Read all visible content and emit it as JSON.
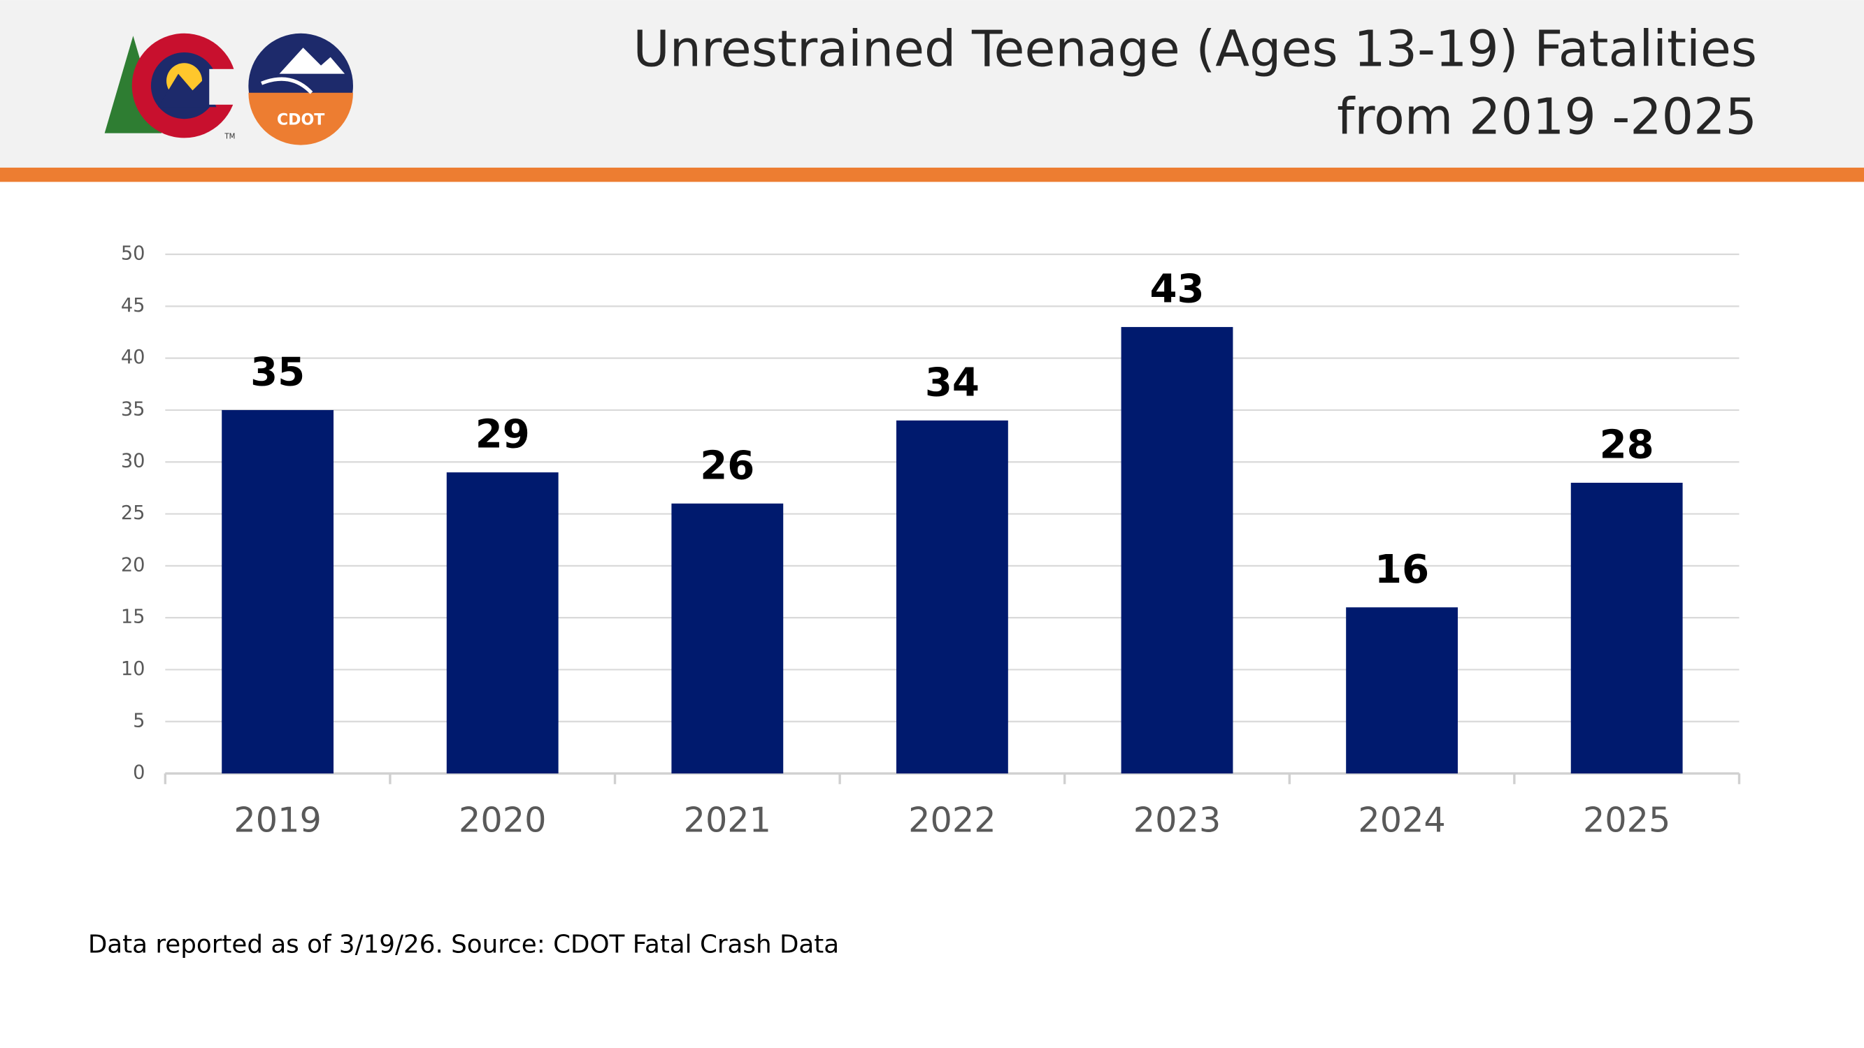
{
  "header": {
    "logo_label": "CDOT",
    "trademark": "TM"
  },
  "chart_data": {
    "type": "bar",
    "title": [
      "Unrestrained Teenage (Ages 13-19) Fatalities",
      "from 2019 -2025"
    ],
    "categories": [
      "2019",
      "2020",
      "2021",
      "2022",
      "2023",
      "2024",
      "2025"
    ],
    "values": [
      35,
      29,
      26,
      34,
      43,
      16,
      28
    ],
    "color": "#001a6e",
    "ylim": [
      0,
      50
    ],
    "yticks": [
      0,
      5,
      10,
      15,
      20,
      25,
      30,
      35,
      40,
      45,
      50
    ],
    "grid": true,
    "footnote": "Data reported as of 3/19/26. Source: CDOT Fatal Crash Data"
  }
}
